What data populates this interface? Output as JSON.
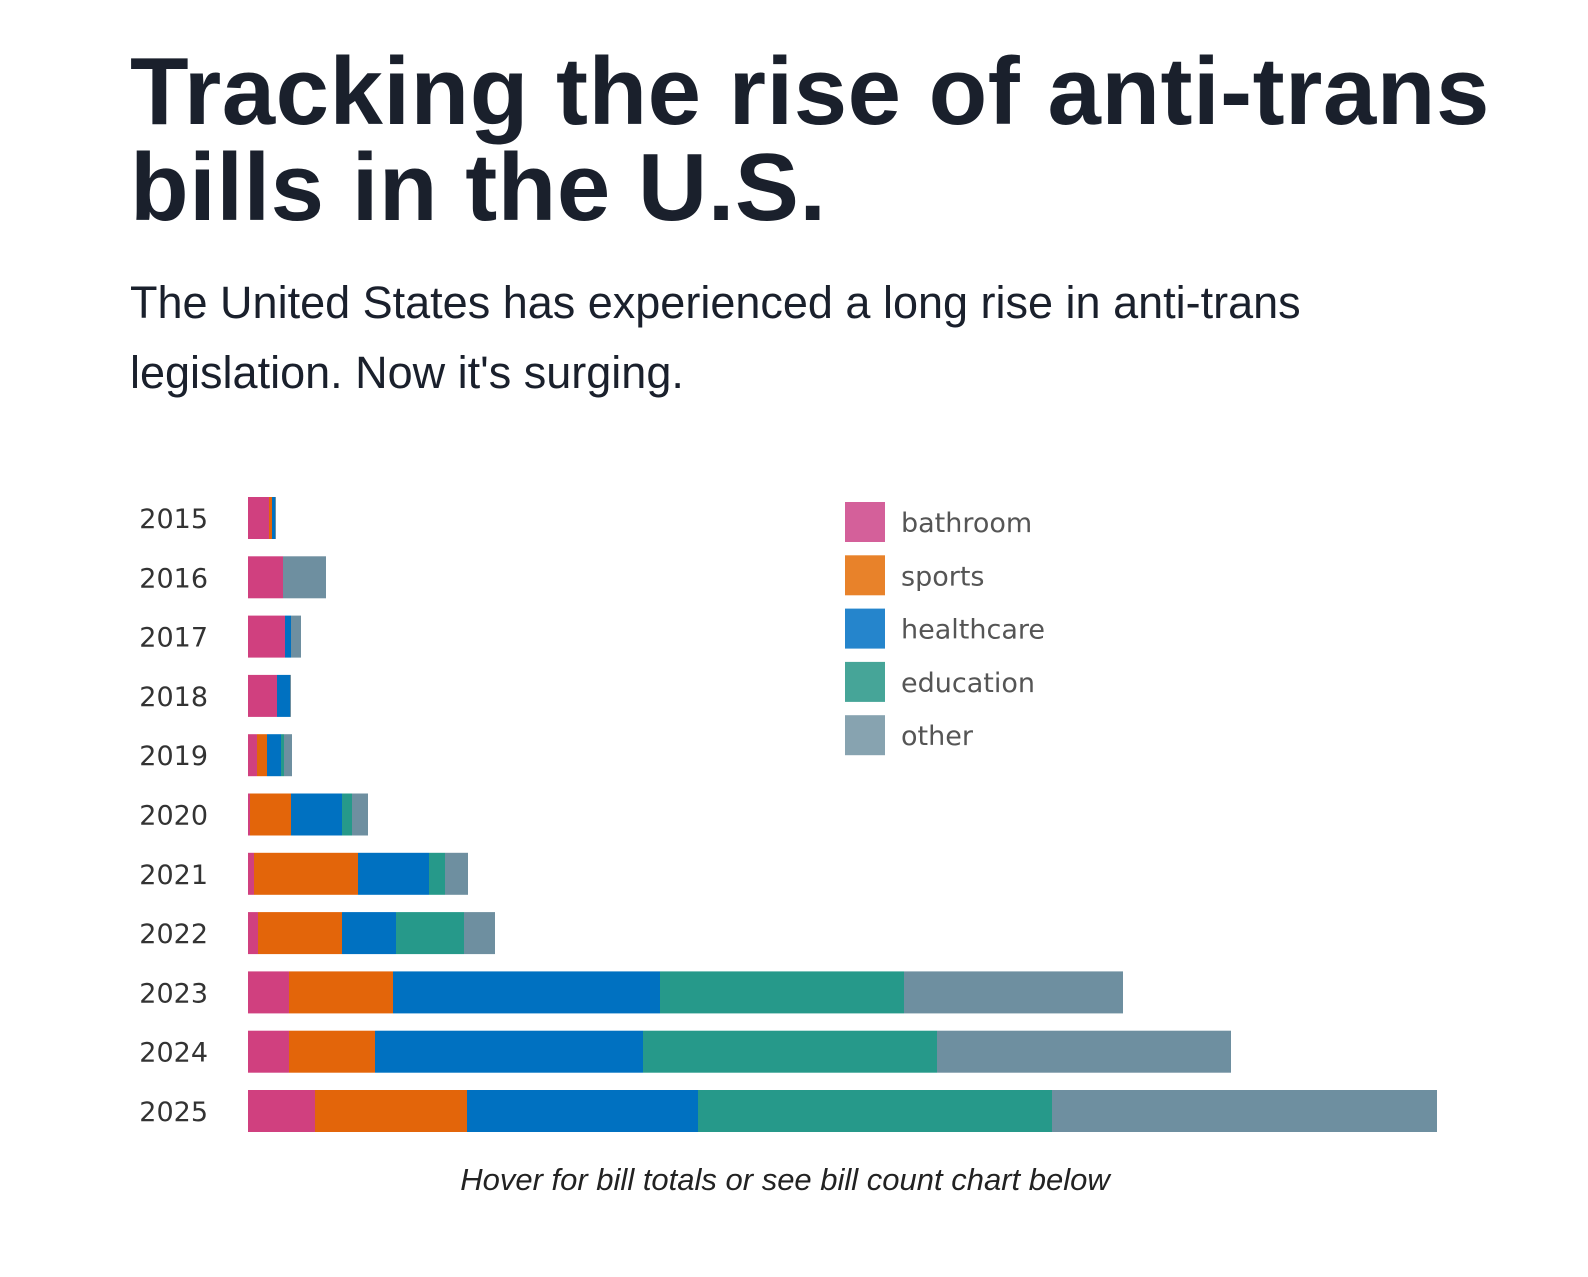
{
  "header": {
    "title": "Tracking the rise of anti-trans bills in the U.S.",
    "subtitle": "The United States has experienced a long rise in anti-trans legislation. Now it's surging."
  },
  "caption": "Hover for bill totals or see bill count chart below",
  "chart_data": {
    "type": "bar",
    "orientation": "horizontal",
    "stacked": true,
    "categories": [
      "2015",
      "2016",
      "2017",
      "2018",
      "2019",
      "2020",
      "2021",
      "2022",
      "2023",
      "2024",
      "2025"
    ],
    "series": [
      {
        "name": "bathroom",
        "color": "#d0407f",
        "values": [
          21,
          35,
          37,
          29,
          9,
          2,
          6,
          10,
          41,
          41,
          67
        ]
      },
      {
        "name": "sports",
        "color": "#e3650a",
        "values": [
          3,
          0,
          0,
          0,
          10,
          41,
          104,
          84,
          104,
          86,
          152
        ]
      },
      {
        "name": "healthcare",
        "color": "#0071c1",
        "values": [
          3,
          0,
          6,
          13,
          14,
          51,
          71,
          54,
          267,
          268,
          231
        ]
      },
      {
        "name": "education",
        "color": "#26998a",
        "values": [
          0,
          0,
          0,
          0,
          3,
          10,
          16,
          68,
          244,
          294,
          354
        ]
      },
      {
        "name": "other",
        "color": "#6e8fa0",
        "values": [
          1,
          43,
          10,
          1,
          8,
          16,
          23,
          31,
          219,
          294,
          385
        ]
      }
    ],
    "legend_colors": [
      "#d4609a",
      "#e8822a",
      "#2585cc",
      "#46a598",
      "#87a3b0"
    ],
    "xlim": [
      0,
      1189
    ],
    "grid": false,
    "legend": "top-right"
  }
}
